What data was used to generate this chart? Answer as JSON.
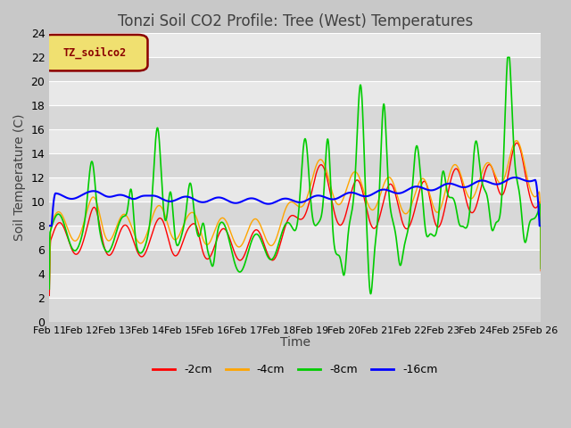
{
  "title": "Tonzi Soil CO2 Profile: Tree (West) Temperatures",
  "ylabel": "Soil Temperature (C)",
  "xlabel": "Time",
  "ylim": [
    0,
    24
  ],
  "yticks": [
    0,
    2,
    4,
    6,
    8,
    10,
    12,
    14,
    16,
    18,
    20,
    22,
    24
  ],
  "xtick_labels": [
    "Feb 11",
    "Feb 12",
    "Feb 13",
    "Feb 14",
    "Feb 15",
    "Feb 16",
    "Feb 17",
    "Feb 18",
    "Feb 19",
    "Feb 20",
    "Feb 21",
    "Feb 22",
    "Feb 23",
    "Feb 24",
    "Feb 25",
    "Feb 26"
  ],
  "legend_title": "TZ_soilco2",
  "legend_entries": [
    "-2cm",
    "-4cm",
    "-8cm",
    "-16cm"
  ],
  "line_colors": [
    "#ff0000",
    "#ffa500",
    "#00cc00",
    "#0000ff"
  ],
  "bg_color": "#e8e8e8",
  "plot_bg": "#e8e8e8",
  "title_fontsize": 12,
  "axis_fontsize": 10
}
